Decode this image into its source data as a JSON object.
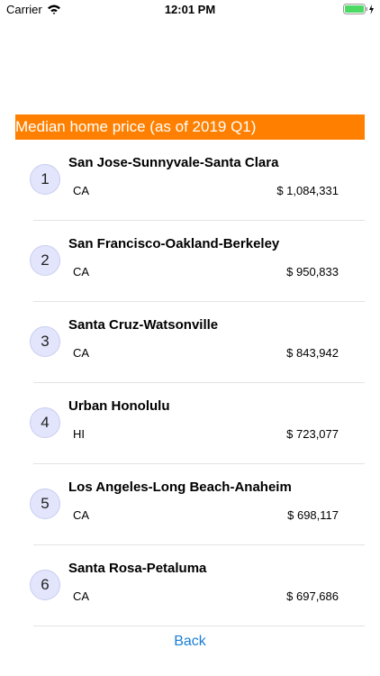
{
  "status_bar": {
    "carrier": "Carrier",
    "time": "12:01 PM"
  },
  "header": {
    "title": "Median home price (as of 2019 Q1)"
  },
  "list": {
    "items": [
      {
        "rank": "1",
        "name": "San Jose-Sunnyvale-Santa Clara",
        "state": "CA",
        "price": "$ 1,084,331"
      },
      {
        "rank": "2",
        "name": "San Francisco-Oakland-Berkeley",
        "state": "CA",
        "price": "$ 950,833"
      },
      {
        "rank": "3",
        "name": "Santa Cruz-Watsonville",
        "state": "CA",
        "price": "$ 843,942"
      },
      {
        "rank": "4",
        "name": "Urban Honolulu",
        "state": "HI",
        "price": "$ 723,077"
      },
      {
        "rank": "5",
        "name": "Los Angeles-Long Beach-Anaheim",
        "state": "CA",
        "price": "$ 698,117"
      },
      {
        "rank": "6",
        "name": "Santa Rosa-Petaluma",
        "state": "CA",
        "price": "$ 697,686"
      }
    ]
  },
  "footer": {
    "back": "Back"
  }
}
